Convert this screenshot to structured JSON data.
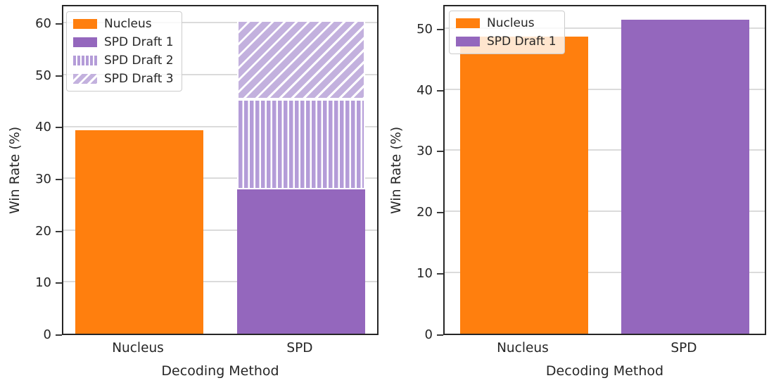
{
  "figure": {
    "background_color": "#ffffff",
    "spine_color": "#262626",
    "grid_color": "#dbdbdb",
    "text_color": "#262626",
    "series_styles": [
      {
        "name": "Nucleus",
        "color": "#ff7f0e",
        "hatch": "none"
      },
      {
        "name": "SPD Draft 1",
        "color": "#9467bd",
        "hatch": "none"
      },
      {
        "name": "SPD Draft 2",
        "color": "#b49cd8",
        "hatch": "vertical"
      },
      {
        "name": "SPD Draft 3",
        "color": "#c3b1de",
        "hatch": "diagonal"
      }
    ]
  },
  "chart_data": [
    {
      "type": "bar",
      "stacked": true,
      "title": "",
      "xlabel": "Decoding Method",
      "ylabel": "Win Rate (%)",
      "categories": [
        "Nucleus",
        "SPD"
      ],
      "yticks": [
        0,
        10,
        20,
        30,
        40,
        50,
        60
      ],
      "ylim": [
        0,
        63.7
      ],
      "grid": true,
      "legend_position": "upper left",
      "legend": [
        "Nucleus",
        "SPD Draft 1",
        "SPD Draft 2",
        "SPD Draft 3"
      ],
      "series": [
        {
          "name": "Nucleus",
          "values": [
            39.3,
            0
          ]
        },
        {
          "name": "SPD Draft 1",
          "values": [
            0,
            27.9
          ]
        },
        {
          "name": "SPD Draft 2",
          "values": [
            0,
            17.3
          ]
        },
        {
          "name": "SPD Draft 3",
          "values": [
            0,
            15.3
          ]
        }
      ]
    },
    {
      "type": "bar",
      "stacked": false,
      "title": "",
      "xlabel": "Decoding Method",
      "ylabel": "Win Rate (%)",
      "categories": [
        "Nucleus",
        "SPD"
      ],
      "yticks": [
        0,
        10,
        20,
        30,
        40,
        50
      ],
      "ylim": [
        0,
        54
      ],
      "grid": true,
      "legend_position": "upper left",
      "legend": [
        "Nucleus",
        "SPD Draft 1"
      ],
      "series": [
        {
          "name": "Nucleus",
          "values": [
            48.6,
            0
          ]
        },
        {
          "name": "SPD Draft 1",
          "values": [
            0,
            51.4
          ]
        }
      ]
    }
  ]
}
